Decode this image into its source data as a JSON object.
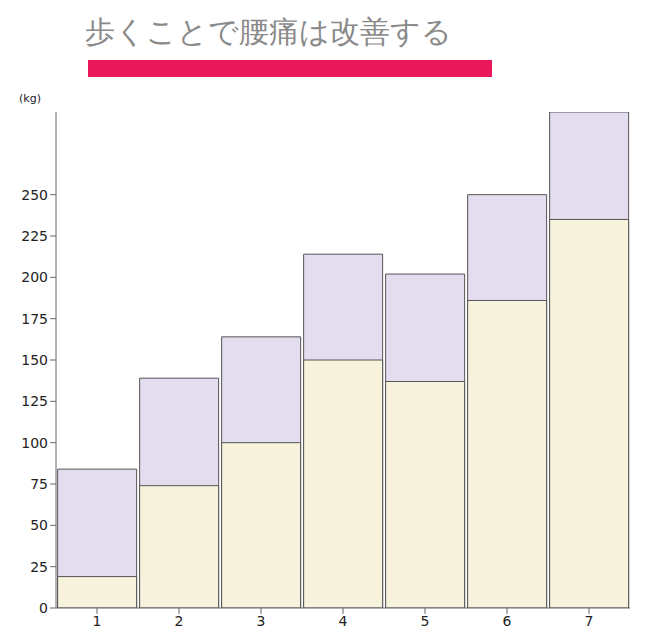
{
  "chart_data": {
    "type": "bar",
    "title": "歩くことで腰痛は改善する",
    "y_label": "(kg)",
    "categories": [
      "1",
      "2",
      "3",
      "4",
      "5",
      "6",
      "7"
    ],
    "series": [
      {
        "color": "#e4dcef",
        "values": [
          84,
          139,
          164,
          214,
          202,
          250,
          300
        ]
      },
      {
        "color": "#f6f2dc",
        "values": [
          19,
          74,
          100,
          150,
          137,
          186,
          235
        ]
      }
    ],
    "ylim": [
      0,
      300
    ],
    "yticks": [
      0,
      25,
      50,
      75,
      100,
      125,
      150,
      175,
      200,
      225,
      250
    ],
    "grid": false
  }
}
